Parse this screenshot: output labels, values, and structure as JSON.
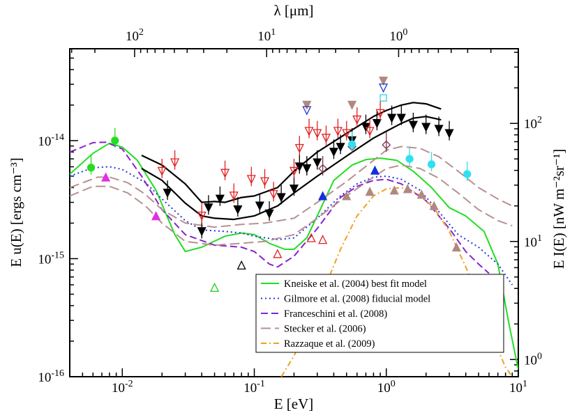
{
  "chart_data": {
    "type": "line",
    "xlabel": "E [eV]",
    "ylabel": "E u(E) [ergs cm⁻³]",
    "x2label": "λ [μm]",
    "y2label": "E I(E) [nW m⁻²sr⁻¹]",
    "xlim": [
      0.004,
      10
    ],
    "ylim": [
      1e-16,
      6e-14
    ],
    "xscale": "log",
    "yscale": "log",
    "grid": false,
    "legend_position": "lower-right",
    "x_ticks": [
      {
        "value": 0.01,
        "base": "10",
        "exp": "-2"
      },
      {
        "value": 0.1,
        "base": "10",
        "exp": "-1"
      },
      {
        "value": 1,
        "base": "10",
        "exp": "0"
      },
      {
        "value": 10,
        "base": "10",
        "exp": "1"
      }
    ],
    "y_ticks": [
      {
        "value": 1e-16,
        "base": "10",
        "exp": "-16"
      },
      {
        "value": 1e-15,
        "base": "10",
        "exp": "-15"
      },
      {
        "value": 1e-14,
        "base": "10",
        "exp": "-14"
      }
    ],
    "top_ticks": [
      {
        "label": "10",
        "exp": "2",
        "lambda_um": 100
      },
      {
        "label": "10",
        "exp": "1",
        "lambda_um": 10
      },
      {
        "label": "10",
        "exp": "0",
        "lambda_um": 1
      }
    ],
    "right_ticks": [
      {
        "label": "10",
        "exp": "0",
        "nw": 1
      },
      {
        "label": "10",
        "exp": "1",
        "nw": 10
      },
      {
        "label": "10",
        "exp": "2",
        "nw": 100
      }
    ],
    "series": [
      {
        "name": "Kneiske et al. (2004) best fit model",
        "color": "#22dd22",
        "dash": "solid",
        "points": [
          [
            0.004,
            5.2e-15
          ],
          [
            0.006,
            7.8e-15
          ],
          [
            0.008,
            9.5e-15
          ],
          [
            0.01,
            8.8e-15
          ],
          [
            0.013,
            6.8e-15
          ],
          [
            0.018,
            3.8e-15
          ],
          [
            0.025,
            1.6e-15
          ],
          [
            0.03,
            1.15e-15
          ],
          [
            0.04,
            1.25e-15
          ],
          [
            0.06,
            1.55e-15
          ],
          [
            0.08,
            1.65e-15
          ],
          [
            0.1,
            1.6e-15
          ],
          [
            0.13,
            1.35e-15
          ],
          [
            0.17,
            1.2e-15
          ],
          [
            0.2,
            1.2e-15
          ],
          [
            0.25,
            1.5e-15
          ],
          [
            0.3,
            2.3e-15
          ],
          [
            0.4,
            4.6e-15
          ],
          [
            0.55,
            6.2e-15
          ],
          [
            0.7,
            6.9e-15
          ],
          [
            0.9,
            7.1e-15
          ],
          [
            1.2,
            6.8e-15
          ],
          [
            1.6,
            5.5e-15
          ],
          [
            2.2,
            4e-15
          ],
          [
            3,
            2.7e-15
          ],
          [
            4,
            2.3e-15
          ],
          [
            5.5,
            1.7e-15
          ],
          [
            7,
            9e-16
          ],
          [
            8.5,
            2.8e-16
          ],
          [
            10,
            1.15e-16
          ]
        ]
      },
      {
        "name": "Gilmore et al. (2008) fiducial model",
        "color": "#2233dd",
        "dash": "dotted",
        "points": [
          [
            0.004,
            5e-15
          ],
          [
            0.006,
            5.9e-15
          ],
          [
            0.008,
            6e-15
          ],
          [
            0.01,
            5.7e-15
          ],
          [
            0.015,
            4.4e-15
          ],
          [
            0.02,
            3.2e-15
          ],
          [
            0.03,
            2.1e-15
          ],
          [
            0.04,
            1.75e-15
          ],
          [
            0.06,
            1.7e-15
          ],
          [
            0.08,
            1.65e-15
          ],
          [
            0.1,
            1.55e-15
          ],
          [
            0.15,
            1.45e-15
          ],
          [
            0.2,
            1.5e-15
          ],
          [
            0.3,
            2.2e-15
          ],
          [
            0.45,
            3.4e-15
          ],
          [
            0.6,
            4.3e-15
          ],
          [
            0.8,
            4.9e-15
          ],
          [
            1,
            5e-15
          ],
          [
            1.3,
            4.7e-15
          ],
          [
            1.8,
            3.8e-15
          ],
          [
            2.5,
            2.5e-15
          ],
          [
            3.5,
            1.6e-15
          ],
          [
            5,
            1.25e-15
          ],
          [
            7,
            9e-16
          ],
          [
            9,
            6e-16
          ]
        ]
      },
      {
        "name": "Franceschini et al. (2008)",
        "color": "#8822cc",
        "dash": "dashed",
        "points": [
          [
            0.004,
            8e-15
          ],
          [
            0.006,
            9.6e-15
          ],
          [
            0.0075,
            9.7e-15
          ],
          [
            0.01,
            8.5e-15
          ],
          [
            0.014,
            5e-15
          ],
          [
            0.02,
            2.6e-15
          ],
          [
            0.03,
            1.6e-15
          ],
          [
            0.05,
            1.3e-15
          ],
          [
            0.08,
            1.25e-15
          ],
          [
            0.1,
            1.15e-15
          ],
          [
            0.13,
            9e-16
          ],
          [
            0.15,
            8.5e-16
          ],
          [
            0.2,
            1.05e-15
          ],
          [
            0.3,
            1.8e-15
          ],
          [
            0.45,
            3.3e-15
          ],
          [
            0.6,
            4.1e-15
          ],
          [
            0.8,
            4.6e-15
          ],
          [
            1,
            4.7e-15
          ],
          [
            1.3,
            4.3e-15
          ],
          [
            2,
            3.1e-15
          ],
          [
            3,
            1.8e-15
          ],
          [
            4,
            1.15e-15
          ],
          [
            5,
            9e-16
          ],
          [
            6,
            7.5e-16
          ]
        ]
      },
      {
        "name": "Stecker et al. (2006)",
        "color": "#b89090",
        "dash": "longdash",
        "curve": "upper",
        "points": [
          [
            0.004,
            4e-15
          ],
          [
            0.0065,
            4.9e-15
          ],
          [
            0.008,
            4.9e-15
          ],
          [
            0.011,
            4.4e-15
          ],
          [
            0.015,
            3.5e-15
          ],
          [
            0.02,
            2.6e-15
          ],
          [
            0.03,
            2e-15
          ],
          [
            0.05,
            1.85e-15
          ],
          [
            0.08,
            1.95e-15
          ],
          [
            0.12,
            2e-15
          ],
          [
            0.2,
            2.2e-15
          ],
          [
            0.3,
            3e-15
          ],
          [
            0.5,
            4.5e-15
          ],
          [
            0.8,
            6.8e-15
          ],
          [
            1,
            8.3e-15
          ],
          [
            1.3,
            8.9e-15
          ],
          [
            1.8,
            8.6e-15
          ],
          [
            2.5,
            7.3e-15
          ],
          [
            3.5,
            5.5e-15
          ],
          [
            5,
            4e-15
          ],
          [
            7,
            3.2e-15
          ],
          [
            9,
            2.8e-15
          ]
        ]
      },
      {
        "name": "Stecker et al. (2006)",
        "color": "#b89090",
        "dash": "longdash",
        "curve": "lower",
        "points": [
          [
            0.004,
            3.4e-15
          ],
          [
            0.006,
            4.1e-15
          ],
          [
            0.008,
            4.1e-15
          ],
          [
            0.011,
            3.6e-15
          ],
          [
            0.015,
            2.8e-15
          ],
          [
            0.02,
            2e-15
          ],
          [
            0.03,
            1.4e-15
          ],
          [
            0.05,
            1.3e-15
          ],
          [
            0.08,
            1.35e-15
          ],
          [
            0.12,
            1.4e-15
          ],
          [
            0.2,
            1.6e-15
          ],
          [
            0.3,
            2.2e-15
          ],
          [
            0.5,
            3.4e-15
          ],
          [
            0.8,
            4.9e-15
          ],
          [
            1,
            5.8e-15
          ],
          [
            1.3,
            6.2e-15
          ],
          [
            1.8,
            5.8e-15
          ],
          [
            2.5,
            4.8e-15
          ],
          [
            3.5,
            3.6e-15
          ],
          [
            5,
            2.6e-15
          ],
          [
            7,
            2.1e-15
          ],
          [
            9,
            1.9e-15
          ]
        ]
      },
      {
        "name": "Razzaque et al. (2009)",
        "color": "#f0a020",
        "dash": "dashdot",
        "points": [
          [
            0.16,
            1e-16
          ],
          [
            0.2,
            1.5e-16
          ],
          [
            0.3,
            4e-16
          ],
          [
            0.45,
            1.2e-15
          ],
          [
            0.6,
            2.3e-15
          ],
          [
            0.8,
            3.4e-15
          ],
          [
            1,
            3.9e-15
          ],
          [
            1.3,
            4e-15
          ],
          [
            1.7,
            3.6e-15
          ],
          [
            2.3,
            2.7e-15
          ],
          [
            3,
            1.7e-15
          ],
          [
            4,
            8.5e-16
          ],
          [
            5,
            4.6e-16
          ],
          [
            6,
            2.6e-16
          ],
          [
            7,
            1.7e-16
          ],
          [
            8,
            1.2e-16
          ],
          [
            9,
            1e-16
          ]
        ]
      },
      {
        "color": "#000000",
        "dash": "solid",
        "band": "upper",
        "points": [
          [
            0.014,
            7.5e-15
          ],
          [
            0.02,
            6.2e-15
          ],
          [
            0.03,
            4.3e-15
          ],
          [
            0.04,
            3e-15
          ],
          [
            0.05,
            3.05e-15
          ],
          [
            0.06,
            3e-15
          ],
          [
            0.08,
            3.3e-15
          ],
          [
            0.1,
            3.4e-15
          ],
          [
            0.15,
            4e-15
          ],
          [
            0.2,
            5.5e-15
          ],
          [
            0.3,
            8e-15
          ],
          [
            0.5,
            1.15e-14
          ],
          [
            0.8,
            1.6e-14
          ],
          [
            1,
            1.8e-14
          ],
          [
            1.3,
            2e-14
          ],
          [
            1.6,
            2.1e-14
          ],
          [
            2,
            2.05e-14
          ],
          [
            2.6,
            1.85e-14
          ]
        ]
      },
      {
        "color": "#000000",
        "dash": "solid",
        "band": "lower",
        "points": [
          [
            0.014,
            5.8e-15
          ],
          [
            0.02,
            4.6e-15
          ],
          [
            0.03,
            2.95e-15
          ],
          [
            0.04,
            2.3e-15
          ],
          [
            0.05,
            2.2e-15
          ],
          [
            0.07,
            2.15e-15
          ],
          [
            0.1,
            2.3e-15
          ],
          [
            0.15,
            2.8e-15
          ],
          [
            0.2,
            3.6e-15
          ],
          [
            0.3,
            5e-15
          ],
          [
            0.5,
            7.4e-15
          ],
          [
            0.8,
            1.05e-14
          ],
          [
            1,
            1.2e-14
          ],
          [
            1.3,
            1.4e-14
          ],
          [
            1.6,
            1.55e-14
          ],
          [
            2,
            1.6e-14
          ],
          [
            2.6,
            1.5e-14
          ]
        ]
      }
    ],
    "markers": {
      "black_down": [
        [
          0.022,
          3.6e-15
        ],
        [
          0.04,
          1.7e-15
        ],
        [
          0.045,
          2.7e-15
        ],
        [
          0.055,
          3.2e-15
        ],
        [
          0.075,
          2.6e-15
        ],
        [
          0.11,
          2.8e-15
        ],
        [
          0.13,
          2.4e-15
        ],
        [
          0.16,
          3.3e-15
        ],
        [
          0.2,
          3.9e-15
        ],
        [
          0.22,
          6e-15
        ],
        [
          0.25,
          5.8e-15
        ],
        [
          0.3,
          6.5e-15
        ],
        [
          0.4,
          8e-15
        ],
        [
          0.45,
          8.8e-15
        ],
        [
          0.55,
          1e-14
        ],
        [
          0.7,
          1.3e-14
        ],
        [
          0.85,
          1.4e-14
        ],
        [
          1.1,
          1.55e-14
        ],
        [
          1.3,
          1.55e-14
        ],
        [
          1.6,
          1.35e-14
        ],
        [
          2,
          1.3e-14
        ],
        [
          2.5,
          1.25e-14
        ],
        [
          3,
          1.15e-14
        ]
      ],
      "red_open_down": [
        [
          0.02,
          5.5e-15
        ],
        [
          0.025,
          6.5e-15
        ],
        [
          0.04,
          2.3e-15
        ],
        [
          0.06,
          5.3e-15
        ],
        [
          0.07,
          3.4e-15
        ],
        [
          0.095,
          4.7e-15
        ],
        [
          0.12,
          4.5e-15
        ],
        [
          0.14,
          3.5e-15
        ],
        [
          0.2,
          5.5e-15
        ],
        [
          0.22,
          8.6e-15
        ],
        [
          0.26,
          1.2e-14
        ],
        [
          0.3,
          1.15e-14
        ],
        [
          0.35,
          1.05e-14
        ],
        [
          0.43,
          1.2e-14
        ],
        [
          0.5,
          1.15e-14
        ],
        [
          0.6,
          1.5e-14
        ],
        [
          0.75,
          1.2e-14
        ],
        [
          0.9,
          1.7e-14
        ]
      ],
      "red_open_up": [
        [
          0.15,
          1.1e-15
        ],
        [
          0.27,
          1.5e-15
        ],
        [
          0.33,
          1.45e-15
        ]
      ],
      "brown_down": [
        [
          0.25,
          2e-14
        ],
        [
          0.55,
          2e-14
        ],
        [
          0.95,
          3.2e-14
        ]
      ],
      "brown_up": [
        [
          0.5,
          3.4e-15
        ],
        [
          0.75,
          3.7e-15
        ],
        [
          1.15,
          3.8e-15
        ],
        [
          1.45,
          3.9e-15
        ],
        [
          1.85,
          3.5e-15
        ],
        [
          2.3,
          2.8e-15
        ],
        [
          3.4,
          1.25e-15
        ]
      ],
      "blue_open_down": [
        [
          0.25,
          1.8e-14
        ],
        [
          0.95,
          2.8e-14
        ]
      ],
      "diamond": [
        [
          0.33,
          5.8e-15
        ],
        [
          0.55,
          8.9e-15
        ],
        [
          1,
          9.2e-15
        ]
      ],
      "cyan_square": [
        [
          0.95,
          2.3e-14
        ]
      ],
      "cyan_circle": [
        [
          0.55,
          9.3e-15
        ],
        [
          1.5,
          7e-15
        ],
        [
          2.2,
          6.3e-15
        ],
        [
          4.1,
          5.2e-15
        ]
      ],
      "green_circle": [
        [
          0.0058,
          5.9e-15
        ],
        [
          0.0088,
          1e-14
        ]
      ],
      "green_open_up": [
        [
          0.05,
          5.7e-16
        ]
      ],
      "magenta_up": [
        [
          0.0075,
          4.9e-15
        ],
        [
          0.018,
          2.3e-15
        ]
      ],
      "black_open_up": [
        [
          0.08,
          8.8e-16
        ]
      ],
      "blue_up": [
        [
          0.33,
          3.4e-15
        ],
        [
          0.82,
          5.6e-15
        ]
      ]
    }
  }
}
